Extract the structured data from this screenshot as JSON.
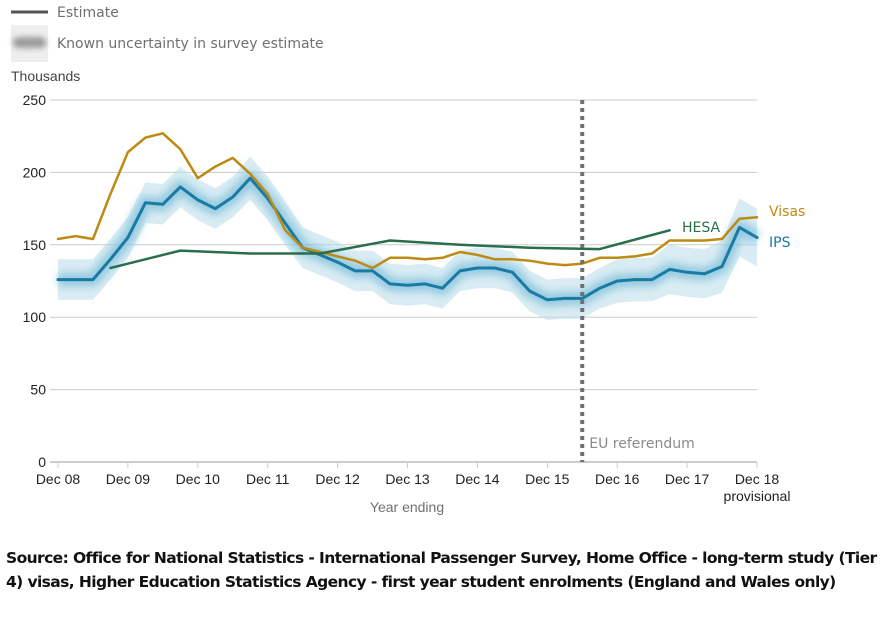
{
  "legend": {
    "estimate_label": "Estimate",
    "uncertainty_label": "Known uncertainty in survey estimate"
  },
  "colors": {
    "ips": "#1a7aa3",
    "ips_band": "#b9dcea",
    "visas": "#bd8b13",
    "hesa": "#2a6e4b",
    "grid": "#cccccc",
    "annotation_line": "#707070"
  },
  "chart_data": {
    "type": "line",
    "title": "",
    "unit_label": "Thousands",
    "xlabel": "Year ending",
    "ylabel": "Thousands",
    "ylim": [
      0,
      250
    ],
    "yticks": [
      0,
      50,
      100,
      150,
      200,
      250
    ],
    "xlim": [
      2008.0,
      2018.0
    ],
    "xticks": [
      {
        "x": 2008,
        "label": "Dec 08"
      },
      {
        "x": 2009,
        "label": "Dec 09"
      },
      {
        "x": 2010,
        "label": "Dec 10"
      },
      {
        "x": 2011,
        "label": "Dec 11"
      },
      {
        "x": 2012,
        "label": "Dec 12"
      },
      {
        "x": 2013,
        "label": "Dec 13"
      },
      {
        "x": 2014,
        "label": "Dec 14"
      },
      {
        "x": 2015,
        "label": "Dec 15"
      },
      {
        "x": 2016,
        "label": "Dec 16"
      },
      {
        "x": 2017,
        "label": "Dec 17"
      },
      {
        "x": 2018,
        "label": "Dec 18",
        "sublabel": "provisional"
      }
    ],
    "grid": true,
    "legend_position": "top-left",
    "series": [
      {
        "name": "IPS",
        "label": "IPS",
        "has_uncertainty": true,
        "x_start": 2008.0,
        "x_step": 0.25,
        "values": [
          126,
          126,
          126,
          140,
          155,
          179,
          178,
          190,
          181,
          175,
          183,
          196,
          182,
          165,
          148,
          143,
          138,
          132,
          132,
          123,
          122,
          123,
          120,
          132,
          134,
          134,
          131,
          118,
          112,
          113,
          113,
          120,
          125,
          126,
          126,
          133,
          131,
          130,
          135,
          162,
          155
        ],
        "uncertainty": [
          14,
          14,
          14,
          14,
          14,
          14,
          14,
          14,
          14,
          14,
          14,
          15,
          15,
          15,
          14,
          14,
          14,
          14,
          14,
          14,
          14,
          14,
          14,
          14,
          14,
          14,
          14,
          14,
          14,
          14,
          14,
          14,
          15,
          15,
          15,
          17,
          17,
          17,
          18,
          20,
          20
        ]
      },
      {
        "name": "Visas",
        "label": "Visas",
        "x_start": 2008.0,
        "x_step": 0.25,
        "values": [
          154,
          156,
          154,
          185,
          214,
          224,
          227,
          216,
          196,
          204,
          210,
          199,
          185,
          160,
          148,
          145,
          142,
          139,
          134,
          141,
          141,
          140,
          141,
          145,
          143,
          140,
          140,
          139,
          137,
          136,
          137,
          141,
          141,
          142,
          144,
          153,
          153,
          153,
          154,
          168,
          169
        ]
      },
      {
        "name": "HESA",
        "label": "HESA",
        "x": [
          2008.75,
          2009.75,
          2010.75,
          2011.75,
          2012.75,
          2013.75,
          2014.75,
          2015.75,
          2016.75
        ],
        "values": [
          134,
          146,
          144,
          144,
          153,
          150,
          148,
          147,
          160
        ]
      }
    ],
    "annotations": [
      {
        "type": "vline",
        "x": 2015.5,
        "label": "EU referendum",
        "style": "dotted"
      }
    ]
  },
  "source": "Source: Office for National Statistics - International Passenger Survey, Home Office - long-term study (Tier 4) visas, Higher Education Statistics Agency - first year student enrolments (England and Wales only)"
}
